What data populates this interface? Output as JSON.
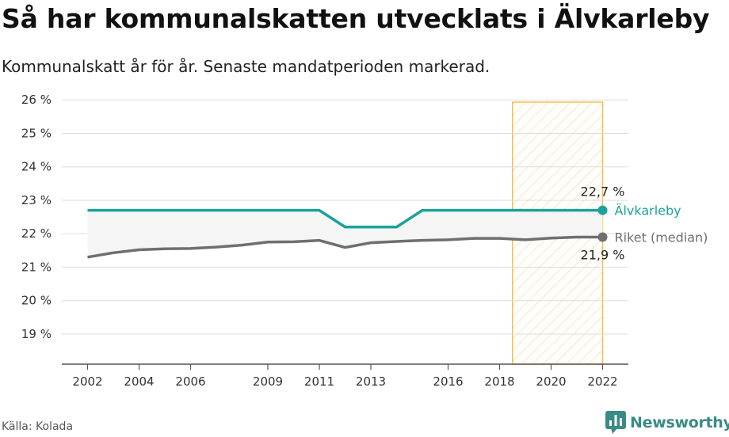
{
  "header": {
    "title": "Så har kommunalskatten utvecklats i Älvkarleby",
    "subtitle": "Kommunalskatt år för år. Senaste mandatperioden markerad."
  },
  "footer": {
    "source": "Källa: Kolada",
    "brand": "Newsworthy"
  },
  "colors": {
    "alvkarleby": "#1aa39a",
    "riket": "#6e6e73",
    "band": "#f5f5f5",
    "highlight_stroke": "#f5c04a",
    "grid": "#dddddd",
    "brand": "#3a8a86"
  },
  "icons": {
    "brand": "newsworthy-logo-icon"
  },
  "chart_data": {
    "type": "line",
    "x": [
      2002,
      2003,
      2004,
      2005,
      2006,
      2007,
      2008,
      2009,
      2010,
      2011,
      2012,
      2013,
      2014,
      2015,
      2016,
      2017,
      2018,
      2019,
      2020,
      2021,
      2022
    ],
    "series": [
      {
        "name": "Älvkarleby",
        "color": "#1aa39a",
        "values": [
          22.7,
          22.7,
          22.7,
          22.7,
          22.7,
          22.7,
          22.7,
          22.7,
          22.7,
          22.7,
          22.2,
          22.2,
          22.2,
          22.7,
          22.7,
          22.7,
          22.7,
          22.7,
          22.7,
          22.7,
          22.7
        ],
        "end_label": "22,7 %"
      },
      {
        "name": "Riket (median)",
        "color": "#6e6e73",
        "values": [
          21.3,
          21.43,
          21.52,
          21.55,
          21.56,
          21.6,
          21.66,
          21.75,
          21.76,
          21.8,
          21.59,
          21.73,
          21.77,
          21.8,
          21.82,
          21.86,
          21.86,
          21.82,
          21.87,
          21.9,
          21.9
        ],
        "end_label": "21,9 %"
      }
    ],
    "ylim": [
      18.1,
      26.1
    ],
    "yticks": [
      19,
      20,
      21,
      22,
      23,
      24,
      25,
      26
    ],
    "ytick_labels": [
      "19 %",
      "20 %",
      "21 %",
      "22 %",
      "23 %",
      "24 %",
      "25 %",
      "26 %"
    ],
    "xticks": [
      2002,
      2004,
      2006,
      2009,
      2011,
      2013,
      2016,
      2018,
      2020,
      2022
    ],
    "xtick_labels": [
      "2002",
      "2004",
      "2006",
      "2009",
      "2011",
      "2013",
      "2016",
      "2018",
      "2020",
      "2022"
    ],
    "xlim": [
      2001,
      2023
    ],
    "highlight_period": [
      2018.5,
      2022
    ],
    "grid": true,
    "title": "Så har kommunalskatten utvecklats i Älvkarleby",
    "subtitle": "Kommunalskatt år för år. Senaste mandatperioden markerad.",
    "xlabel": "",
    "ylabel": ""
  }
}
